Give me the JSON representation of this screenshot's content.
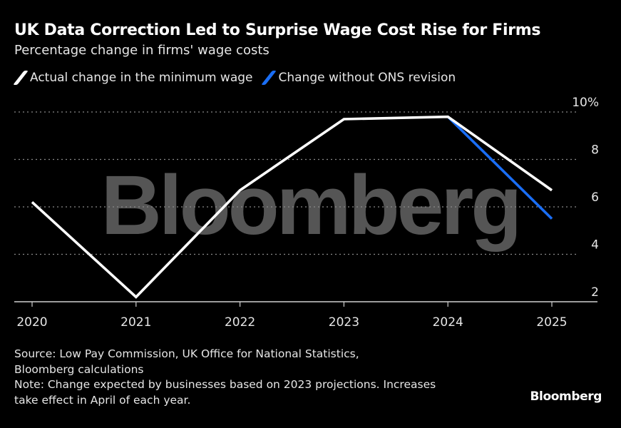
{
  "header": {
    "title": "UK Data Correction Led to Surprise Wage Cost Rise for Firms",
    "subtitle": "Percentage change in firms' wage costs"
  },
  "legend": [
    {
      "label": "Actual change in the minimum wage",
      "color": "#ffffff"
    },
    {
      "label": "Change without ONS revision",
      "color": "#1a6ef5"
    }
  ],
  "watermark": "Bloomberg",
  "footer": {
    "source_line1": "Source: Low Pay Commission, UK Office for National Statistics,",
    "source_line2": "Bloomberg calculations",
    "note_line1": "Note: Change expected by businesses based on 2023 projections. Increases",
    "note_line2": "take effect in April of each year.",
    "brand": "Bloomberg"
  },
  "chart_data": {
    "type": "line",
    "title": "UK Data Correction Led to Surprise Wage Cost Rise for Firms",
    "subtitle": "Percentage change in firms' wage costs",
    "xlabel": "",
    "ylabel": "",
    "x": [
      "2020",
      "2021",
      "2022",
      "2023",
      "2024",
      "2025"
    ],
    "ylim": [
      2,
      10.3
    ],
    "y_ticks": [
      2,
      4,
      6,
      8,
      10
    ],
    "y_tick_labels": [
      "2",
      "4",
      "6",
      "8",
      "10%"
    ],
    "grid": true,
    "y_axis_side": "right",
    "legend_position": "top-left",
    "series": [
      {
        "name": "Actual change in the minimum wage",
        "color": "#ffffff",
        "x": [
          "2020",
          "2021",
          "2022",
          "2023",
          "2024",
          "2025"
        ],
        "values": [
          6.2,
          2.2,
          6.7,
          9.7,
          9.8,
          6.7
        ]
      },
      {
        "name": "Change without ONS revision",
        "color": "#1a6ef5",
        "x": [
          "2024",
          "2025"
        ],
        "values": [
          9.8,
          5.5
        ]
      }
    ]
  }
}
